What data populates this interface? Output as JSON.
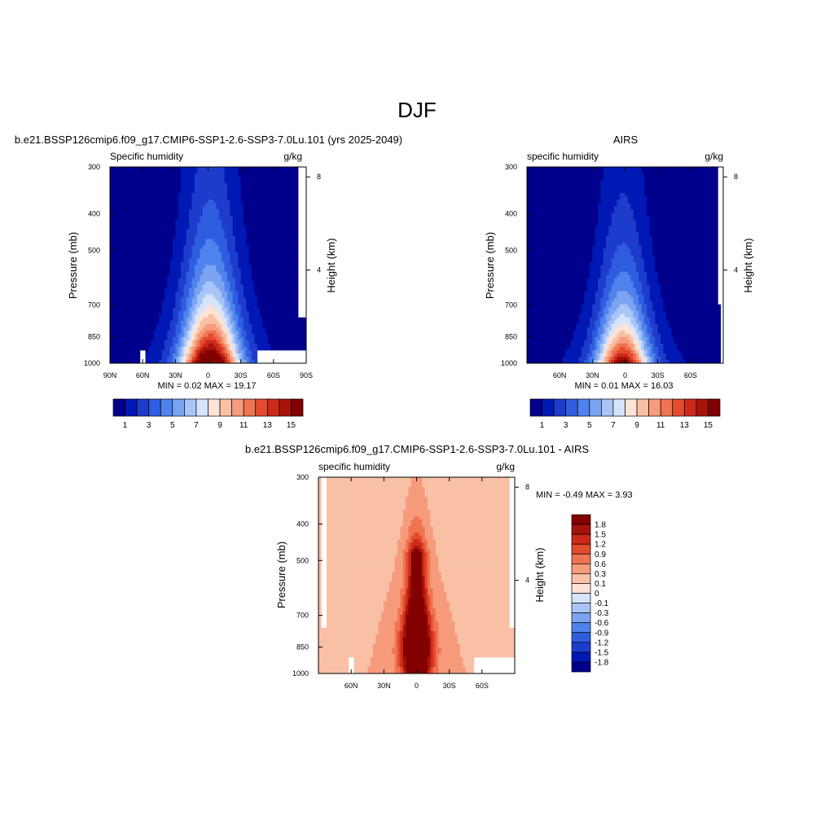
{
  "page_title": "DJF",
  "chart_data": [
    {
      "type": "heatmap",
      "title": "b.e21.BSSP126cmip6.f09_g17.CMIP6-SSP1-2.6-SSP3-7.0Lu.101 (yrs 2025-2049)",
      "left_subtitle": "Specific humidity",
      "right_subtitle": "g/kg",
      "ylabel": "Pressure (mb)",
      "ylabel_right": "Height (km)",
      "x_ticks": [
        "90N",
        "60N",
        "30N",
        "0",
        "30S",
        "60S",
        "90S"
      ],
      "x_tick_values": [
        90,
        60,
        30,
        0,
        -30,
        -60,
        -90
      ],
      "y_ticks": [
        "300",
        "400",
        "500",
        "700",
        "850",
        "1000"
      ],
      "y_tick_values": [
        300,
        400,
        500,
        700,
        850,
        1000
      ],
      "y_right_ticks": [
        "8",
        "4"
      ],
      "y_right_tick_values": [
        8,
        4
      ],
      "xlim": [
        90,
        -90
      ],
      "ylim": [
        1000,
        300
      ],
      "log_y": true,
      "min_max_text": "MIN =   0.02  MAX =  19.17",
      "min": 0.02,
      "max": 19.17,
      "colorbar": {
        "orientation": "horizontal",
        "colors": [
          "#00008c",
          "#0018b4",
          "#1e3ccc",
          "#2e5de0",
          "#4f82ec",
          "#7aa4f2",
          "#a9c5f7",
          "#d6e4fb",
          "#fde3d6",
          "#f9c0a6",
          "#f69b7b",
          "#ef7452",
          "#e34b2e",
          "#cc2a18",
          "#a8120c",
          "#820000"
        ],
        "labels": [
          "1",
          "3",
          "5",
          "7",
          "9",
          "11",
          "13",
          "15"
        ],
        "label_positions": [
          1,
          3,
          5,
          7,
          9,
          11,
          13,
          15
        ]
      },
      "model": {
        "peak": 19.17,
        "peak_lat": -2,
        "half_width": 24,
        "scale_height": 0.34,
        "floor": 0.02,
        "missing": [
          [
            62,
            58,
            1000,
            925
          ],
          [
            -45,
            -90,
            1000,
            925
          ],
          [
            -82,
            -90,
            760,
            300
          ]
        ]
      }
    },
    {
      "type": "heatmap",
      "title": "AIRS",
      "left_subtitle": "specific humidity",
      "right_subtitle": "g/kg",
      "ylabel": "Pressure (mb)",
      "ylabel_right": "Height (km)",
      "x_ticks": [
        "60N",
        "30N",
        "0",
        "30S",
        "60S"
      ],
      "x_tick_values": [
        60,
        30,
        0,
        -30,
        -60
      ],
      "y_ticks": [
        "300",
        "400",
        "500",
        "700",
        "850",
        "1000"
      ],
      "y_tick_values": [
        300,
        400,
        500,
        700,
        850,
        1000
      ],
      "y_right_ticks": [
        "8",
        "4"
      ],
      "y_right_tick_values": [
        8,
        4
      ],
      "xlim": [
        90,
        -90
      ],
      "ylim": [
        1000,
        300
      ],
      "log_y": true,
      "min_max_text": "MIN =   0.01  MAX =  16.03",
      "min": 0.01,
      "max": 16.03,
      "colorbar": {
        "orientation": "horizontal",
        "colors": [
          "#00008c",
          "#0018b4",
          "#1e3ccc",
          "#2e5de0",
          "#4f82ec",
          "#7aa4f2",
          "#a9c5f7",
          "#d6e4fb",
          "#fde3d6",
          "#f9c0a6",
          "#f69b7b",
          "#ef7452",
          "#e34b2e",
          "#cc2a18",
          "#a8120c",
          "#820000"
        ],
        "labels": [
          "1",
          "3",
          "5",
          "7",
          "9",
          "11",
          "13",
          "15"
        ],
        "label_positions": [
          1,
          3,
          5,
          7,
          9,
          11,
          13,
          15
        ]
      },
      "model": {
        "peak": 16.03,
        "peak_lat": 2,
        "half_width": 22,
        "scale_height": 0.31,
        "floor": 0.01,
        "missing": [
          [
            -86,
            -90,
            700,
            300
          ],
          [
            -88,
            -90,
            1000,
            700
          ]
        ]
      }
    },
    {
      "type": "heatmap",
      "title": "b.e21.BSSP126cmip6.f09_g17.CMIP6-SSP1-2.6-SSP3-7.0Lu.101 - AIRS",
      "left_subtitle": "specific humidity",
      "right_subtitle": "g/kg",
      "ylabel": "Pressure (mb)",
      "ylabel_right": "Height (km)",
      "x_ticks": [
        "60N",
        "30N",
        "0",
        "30S",
        "60S"
      ],
      "x_tick_values": [
        60,
        30,
        0,
        -30,
        -60
      ],
      "y_ticks": [
        "300",
        "400",
        "500",
        "700",
        "850",
        "1000"
      ],
      "y_tick_values": [
        300,
        400,
        500,
        700,
        850,
        1000
      ],
      "y_right_ticks": [
        "8",
        "4"
      ],
      "y_right_tick_values": [
        8,
        4
      ],
      "xlim": [
        90,
        -90
      ],
      "ylim": [
        1000,
        300
      ],
      "log_y": true,
      "min_max_text": "MIN =  -0.49  MAX =   3.93",
      "min": -0.49,
      "max": 3.93,
      "colorbar": {
        "orientation": "vertical",
        "colors": [
          "#820000",
          "#a8120c",
          "#cc2a18",
          "#e34b2e",
          "#ef7452",
          "#f69b7b",
          "#f9c0a6",
          "#fde3d6",
          "#d6e4fb",
          "#a9c5f7",
          "#7aa4f2",
          "#4f82ec",
          "#2e5de0",
          "#1e3ccc",
          "#0018b4",
          "#00008c"
        ],
        "labels": [
          "1.8",
          "1.5",
          "1.2",
          "0.9",
          "0.6",
          "0.3",
          "0.1",
          "0",
          "-0.1",
          "-0.3",
          "-0.6",
          "-0.9",
          "-1.2",
          "-1.5",
          "-1.8"
        ]
      },
      "levels": [
        -1.8,
        -1.5,
        -1.2,
        -0.9,
        -0.6,
        -0.3,
        -0.1,
        0,
        0.1,
        0.3,
        0.6,
        0.9,
        1.2,
        1.5,
        1.8
      ],
      "model": {
        "peak": 3.93,
        "peak_lat": 0,
        "half_width": 14,
        "floor": 0.05,
        "missing": [
          [
            62,
            58,
            1000,
            900
          ],
          [
            -52,
            -90,
            1000,
            900
          ],
          [
            -86,
            -90,
            760,
            300
          ],
          [
            88,
            83,
            760,
            300
          ]
        ]
      }
    }
  ]
}
